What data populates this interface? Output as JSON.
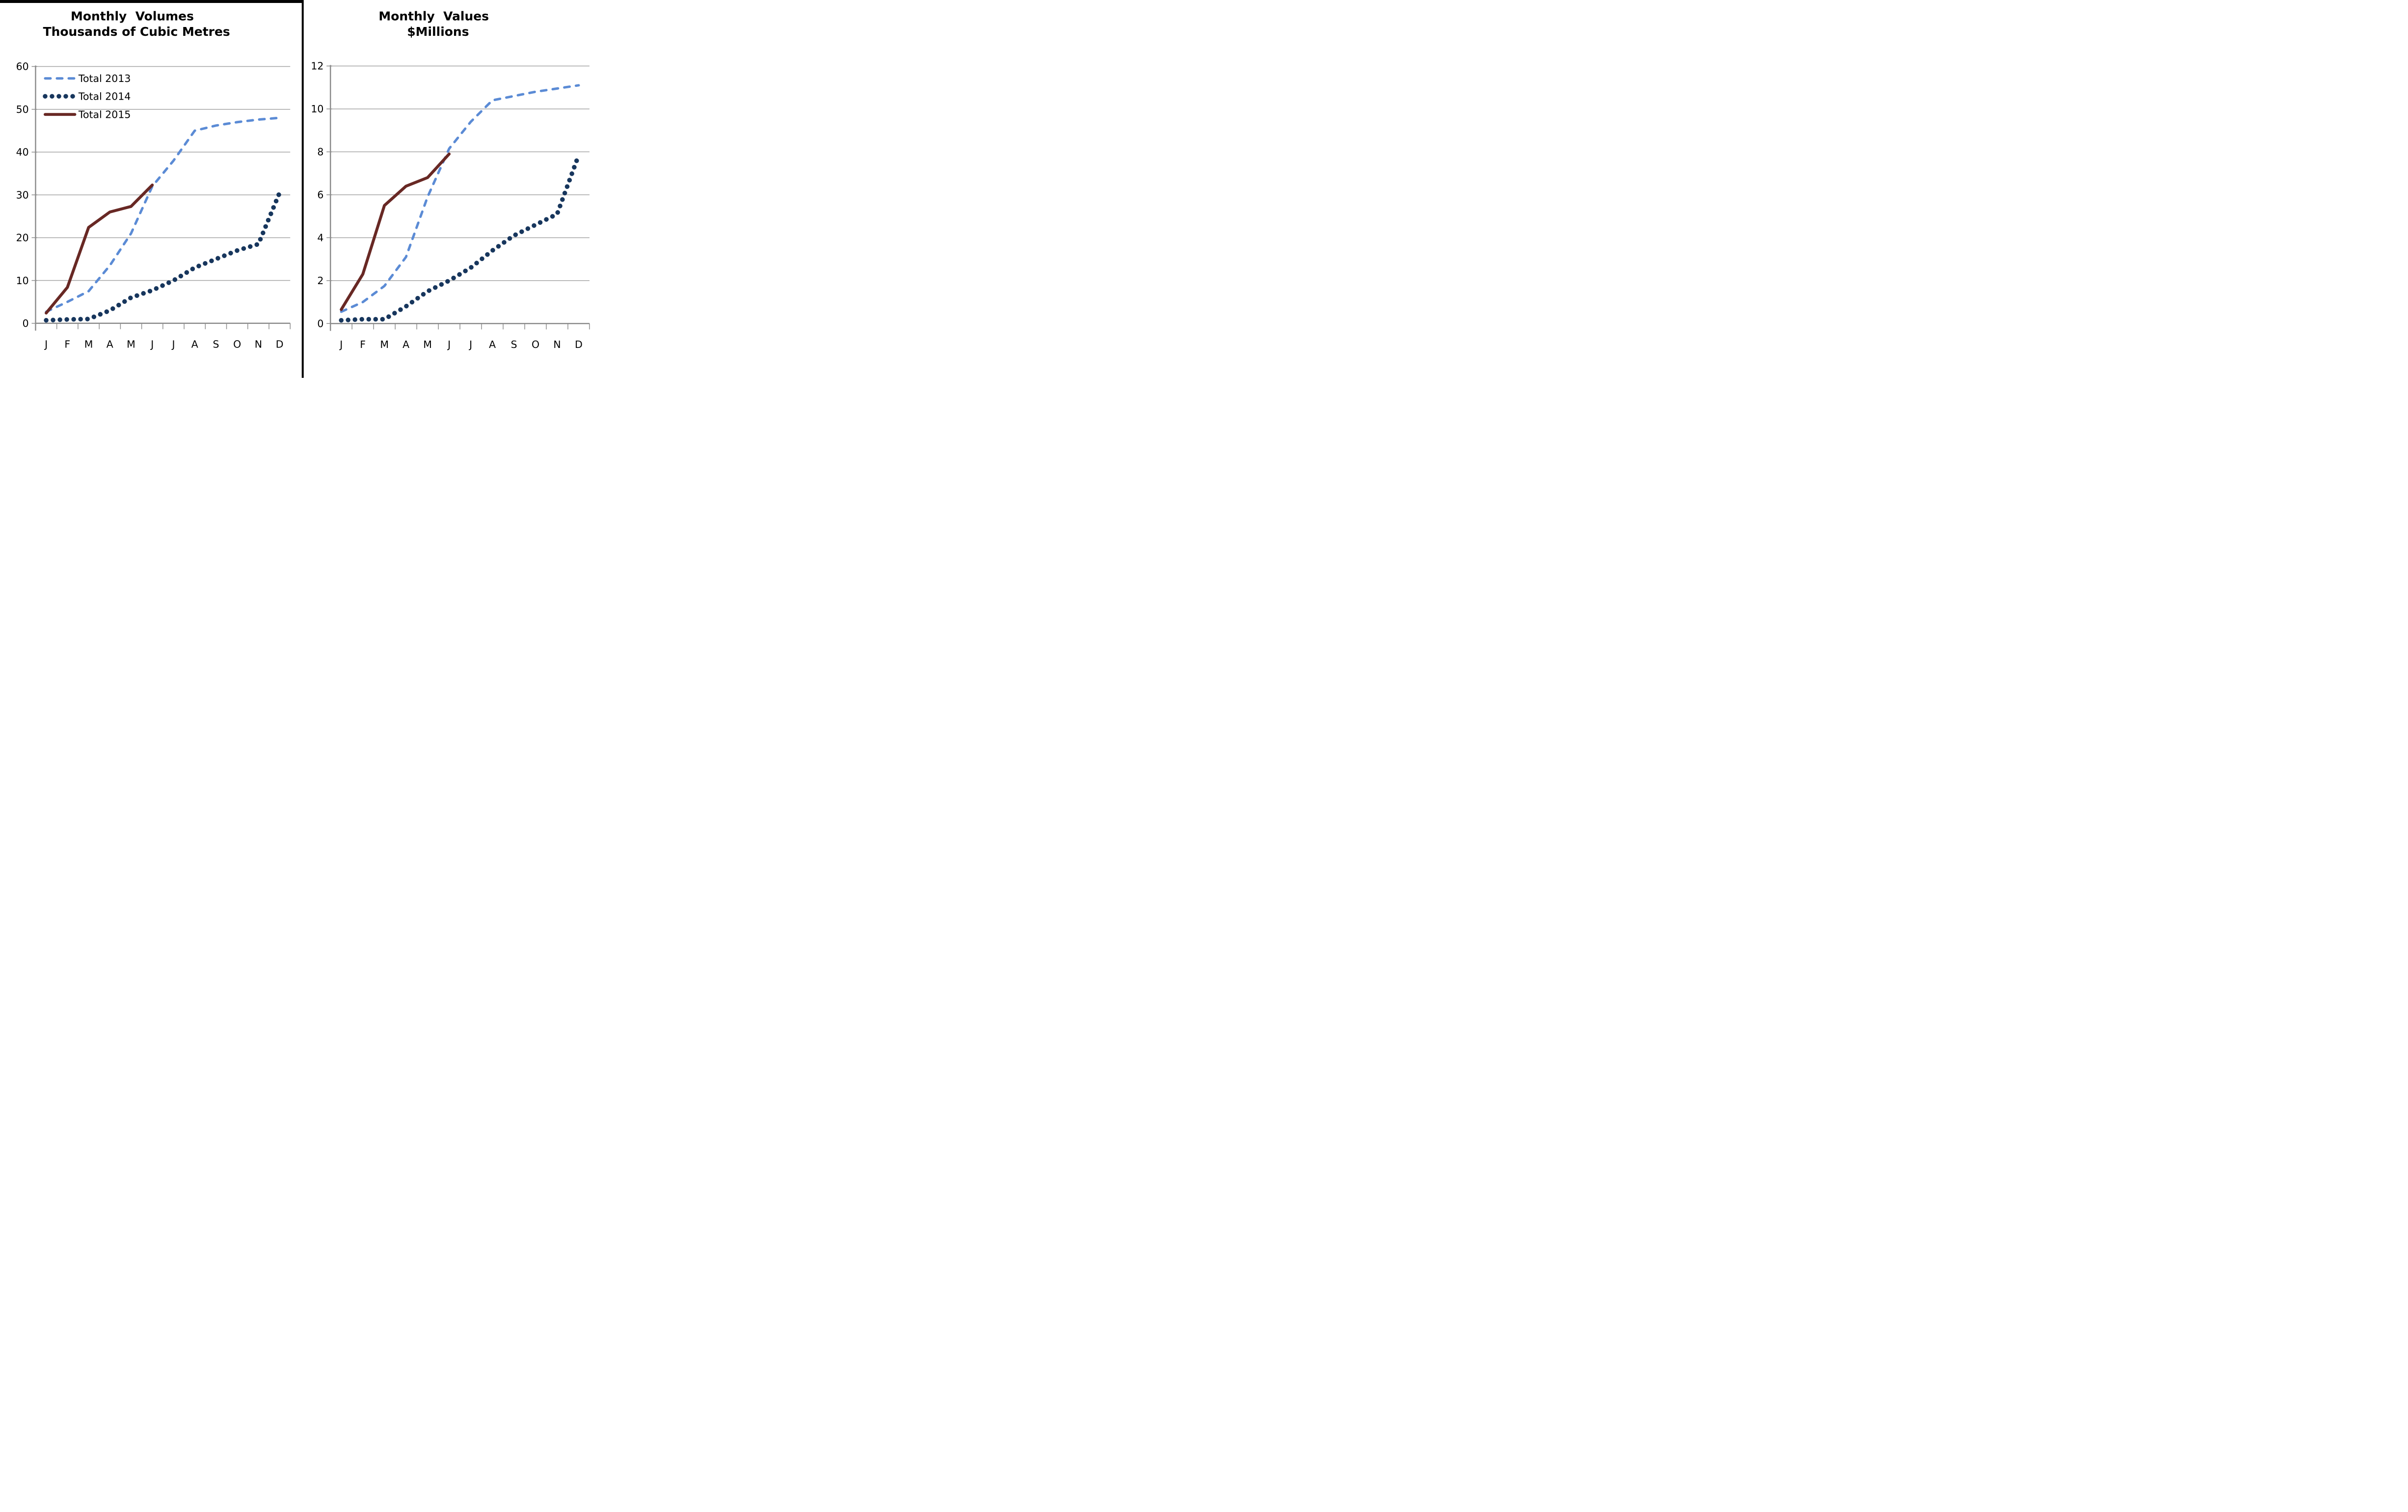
{
  "layout_colors": {
    "background": "#FFFFFF",
    "gridline": "#A6A6A6",
    "axis": "#8C8C8C",
    "text": "#000000",
    "divider": "#000000"
  },
  "chart_data": [
    {
      "type": "line",
      "title_line1": "Monthly  Volumes",
      "title_line2": "Thousands of Cubic Metres",
      "xlabel": "",
      "ylabel": "Thousands of Cubic Metres",
      "x_categories": [
        "J",
        "F",
        "M",
        "A",
        "M",
        "J",
        "J",
        "A",
        "S",
        "O",
        "N",
        "D"
      ],
      "y_ticks": [
        0,
        10,
        20,
        30,
        40,
        50,
        60
      ],
      "y_tick_labels": [
        "0",
        "10",
        "20",
        "30",
        "40",
        "50",
        "60"
      ],
      "ylim": [
        0,
        60
      ],
      "grid": true,
      "legend": {
        "show": true,
        "position": "top-left"
      },
      "series": [
        {
          "name": "Total 2013",
          "style": "dashed",
          "color": "#5B8BD5",
          "values": [
            2.7,
            5,
            7.5,
            13.5,
            21,
            32,
            38,
            45,
            46.2,
            47,
            47.6,
            48
          ]
        },
        {
          "name": "Total 2014",
          "style": "dotted",
          "color": "#17365D",
          "values": [
            0.7,
            0.9,
            1,
            3,
            6,
            7.7,
            10,
            13,
            15,
            17,
            18.5,
            30.5
          ]
        },
        {
          "name": "Total 2015",
          "style": "solid",
          "color": "#682824",
          "values": [
            2.4,
            8.4,
            22.4,
            26,
            27.3,
            32.3
          ]
        }
      ]
    },
    {
      "type": "line",
      "title_line1": "Monthly  Values",
      "title_line2": "$Millions",
      "xlabel": "",
      "ylabel": "$Millions",
      "x_categories": [
        "J",
        "F",
        "M",
        "A",
        "M",
        "J",
        "J",
        "A",
        "S",
        "O",
        "N",
        "D"
      ],
      "y_ticks": [
        0,
        2,
        4,
        6,
        8,
        10,
        12
      ],
      "y_tick_labels": [
        "0",
        "2",
        "4",
        "6",
        "8",
        "10",
        "12"
      ],
      "ylim": [
        0,
        12
      ],
      "grid": true,
      "legend": {
        "show": false,
        "position": "none"
      },
      "series": [
        {
          "name": "Total 2013",
          "style": "dashed",
          "color": "#5B8BD5",
          "values": [
            0.55,
            1,
            1.75,
            3.1,
            5.9,
            8.15,
            9.4,
            10.4,
            10.6,
            10.8,
            10.95,
            11.1
          ]
        },
        {
          "name": "Total 2014",
          "style": "dotted",
          "color": "#17365D",
          "values": [
            0.15,
            0.2,
            0.2,
            0.8,
            1.5,
            2,
            2.6,
            3.4,
            4.1,
            4.6,
            5.1,
            7.85
          ]
        },
        {
          "name": "Total 2015",
          "style": "solid",
          "color": "#682824",
          "values": [
            0.65,
            2.3,
            5.5,
            6.4,
            6.8,
            7.9
          ]
        }
      ]
    }
  ]
}
